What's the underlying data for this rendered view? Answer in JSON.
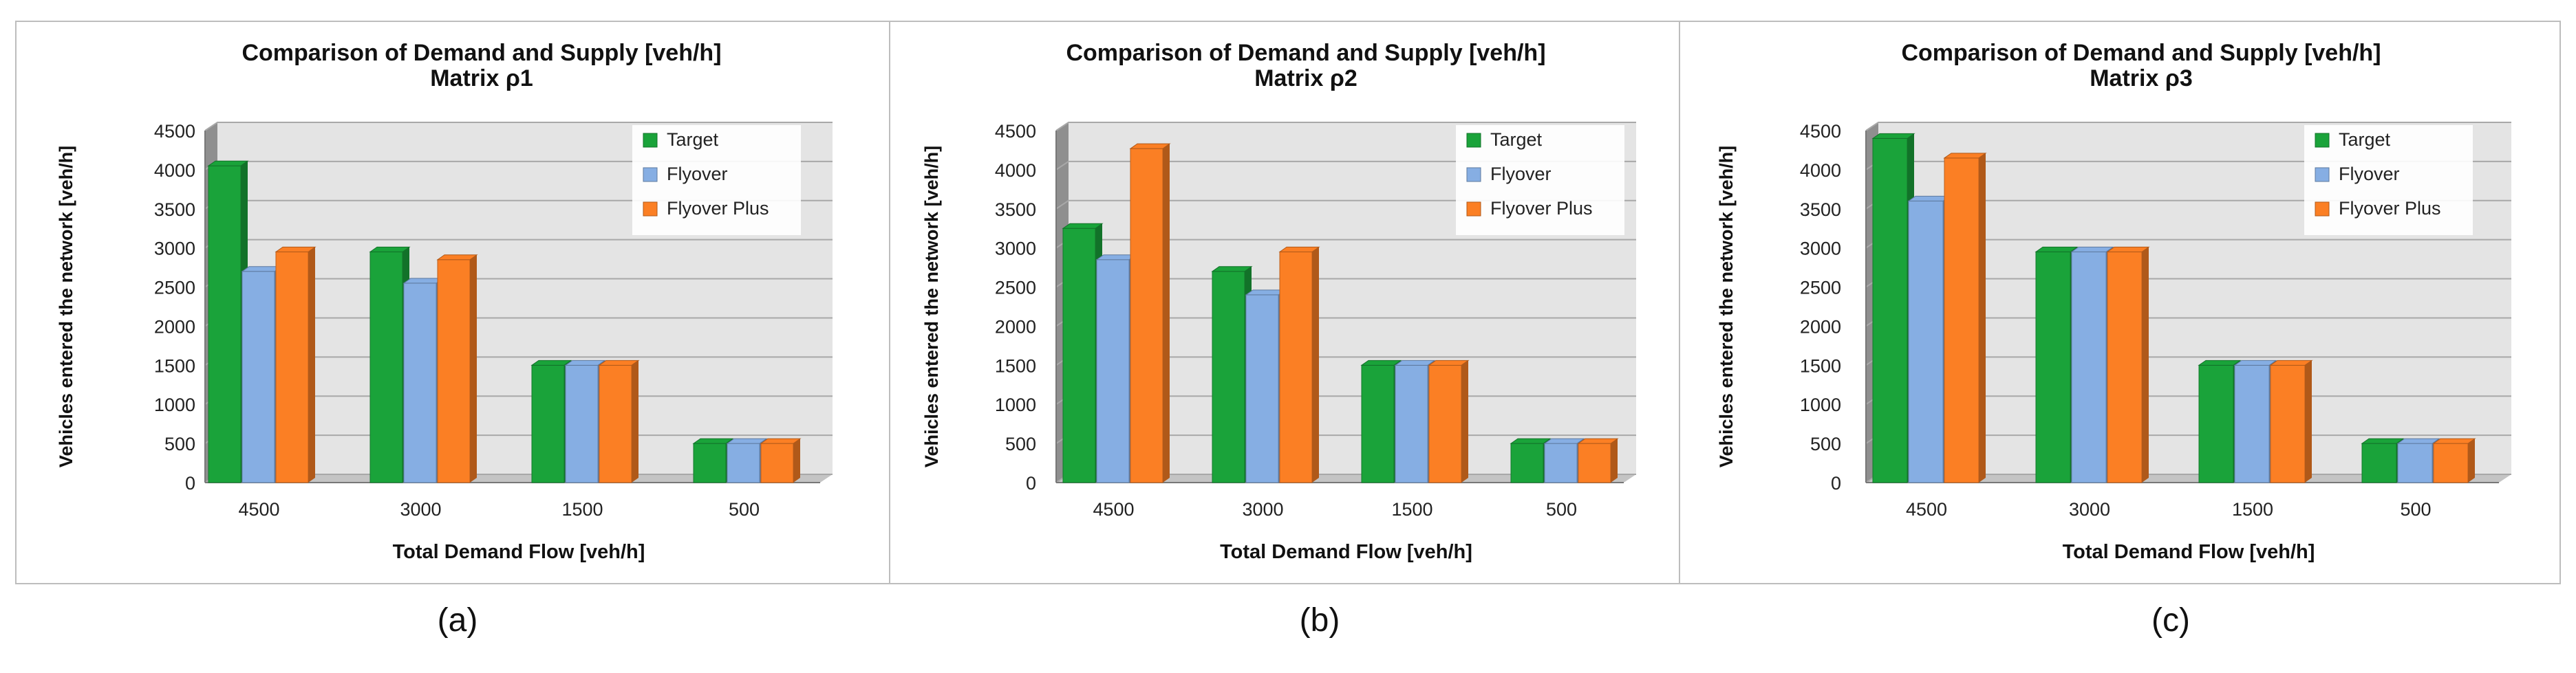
{
  "colors": {
    "target": "#1aa33a",
    "flyover": "#86aee3",
    "flyover_plus": "#fb7f24",
    "plot_bg": "#e4e4e4",
    "grid": "#a8a8a8"
  },
  "chart_data": [
    {
      "type": "bar",
      "panel_label": "(a)",
      "title": "Comparison of Demand and Supply [veh/h]",
      "subtitle": "Matrix ρ1",
      "xlabel": "Total Demand Flow [veh/h]",
      "ylabel": "Vehicles entered the network [veh/h]",
      "ylim": [
        0,
        4500
      ],
      "yticks": [
        "0",
        "500",
        "1000",
        "1500",
        "2000",
        "2500",
        "3000",
        "3500",
        "4000",
        "4500"
      ],
      "categories": [
        "4500",
        "3000",
        "1500",
        "500"
      ],
      "legend_position": "top-right",
      "series": [
        {
          "name": "Target",
          "values": [
            4050,
            2950,
            1500,
            500
          ]
        },
        {
          "name": "Flyover",
          "values": [
            2700,
            2550,
            1500,
            500
          ]
        },
        {
          "name": "Flyover Plus",
          "values": [
            2950,
            2850,
            1500,
            500
          ]
        }
      ]
    },
    {
      "type": "bar",
      "panel_label": "(b)",
      "title": "Comparison of Demand and Supply [veh/h]",
      "subtitle": "Matrix ρ2",
      "xlabel": "Total Demand Flow [veh/h]",
      "ylabel": "Vehicles entered the network [veh/h]",
      "ylim": [
        0,
        4500
      ],
      "yticks": [
        "0",
        "500",
        "1000",
        "1500",
        "2000",
        "2500",
        "3000",
        "3500",
        "4000",
        "4500"
      ],
      "categories": [
        "4500",
        "3000",
        "1500",
        "500"
      ],
      "legend_position": "top-right",
      "series": [
        {
          "name": "Target",
          "values": [
            3250,
            2700,
            1500,
            500
          ]
        },
        {
          "name": "Flyover",
          "values": [
            2850,
            2400,
            1500,
            500
          ]
        },
        {
          "name": "Flyover Plus",
          "values": [
            4270,
            2950,
            1500,
            500
          ]
        }
      ]
    },
    {
      "type": "bar",
      "panel_label": "(c)",
      "title": "Comparison of Demand and Supply [veh/h]",
      "subtitle": "Matrix ρ3",
      "xlabel": "Total Demand Flow [veh/h]",
      "ylabel": "Vehicles entered the network [veh/h]",
      "ylim": [
        0,
        4500
      ],
      "yticks": [
        "0",
        "500",
        "1000",
        "1500",
        "2000",
        "2500",
        "3000",
        "3500",
        "4000",
        "4500"
      ],
      "categories": [
        "4500",
        "3000",
        "1500",
        "500"
      ],
      "legend_position": "top-right",
      "series": [
        {
          "name": "Target",
          "values": [
            4400,
            2950,
            1500,
            500
          ]
        },
        {
          "name": "Flyover",
          "values": [
            3600,
            2950,
            1500,
            500
          ]
        },
        {
          "name": "Flyover Plus",
          "values": [
            4150,
            2950,
            1500,
            500
          ]
        }
      ]
    }
  ]
}
